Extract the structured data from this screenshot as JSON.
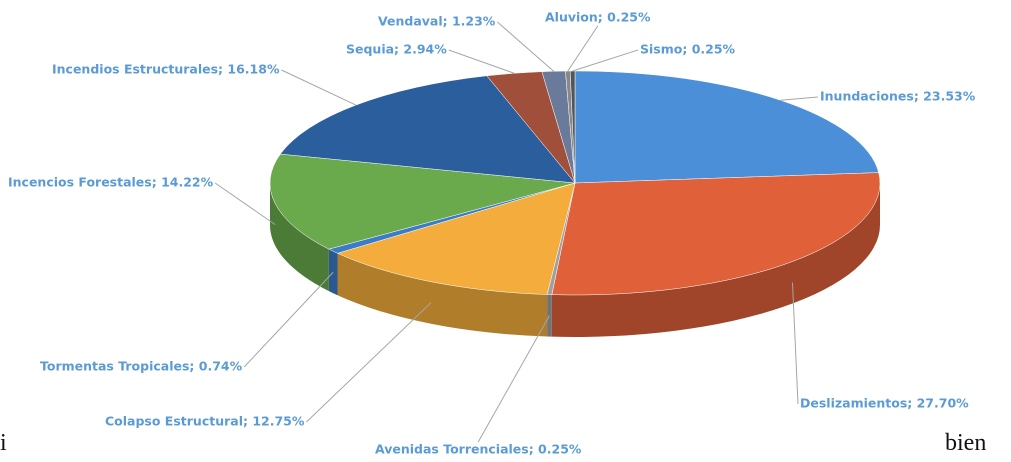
{
  "chart_data": {
    "type": "pie3d",
    "values": [
      23.53,
      27.7,
      0.25,
      12.75,
      0.74,
      14.22,
      16.18,
      2.94,
      1.23,
      0.25,
      0.25
    ],
    "value_labels": [
      "Inundaciones; 23.53%",
      "Deslizamientos; 27.70%",
      "Avenidas Torrenciales; 0.25%",
      "Colapso Estructural; 12.75%",
      "Tormentas Tropicales; 0.74%",
      "Incencios Forestales; 14.22%",
      "Incendios Estructurales; 16.18%",
      "Sequia; 2.94%",
      "Vendaval; 1.23%",
      "Aluvion; 0.25%",
      "Sismo; 0.25%"
    ],
    "colors": [
      "#4a8fd8",
      "#e0603a",
      "#a0a0a0",
      "#f4ad3c",
      "#3a7cc8",
      "#6aaa4c",
      "#2a5e9c",
      "#a0503a",
      "#6a7a9a",
      "#888888",
      "#555555"
    ]
  },
  "fragments": [
    "i",
    "bien"
  ]
}
